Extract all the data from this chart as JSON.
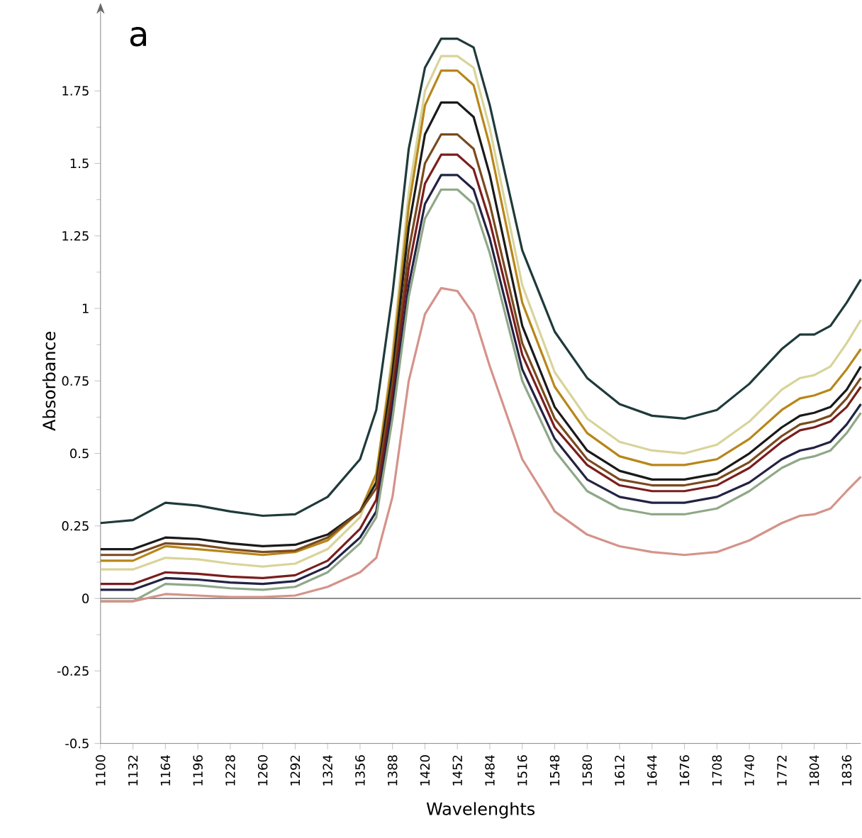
{
  "chart_data": {
    "type": "line",
    "title": "a",
    "xlabel": "Wavelenghts",
    "ylabel": "Absorbance",
    "x": [
      1100,
      1132,
      1164,
      1196,
      1228,
      1260,
      1292,
      1324,
      1356,
      1372,
      1388,
      1404,
      1420,
      1436,
      1452,
      1468,
      1484,
      1516,
      1548,
      1580,
      1612,
      1644,
      1676,
      1708,
      1740,
      1772,
      1790,
      1804,
      1820,
      1836,
      1850
    ],
    "series": [
      {
        "color": "#1f3a3a",
        "values": [
          0.26,
          0.27,
          0.33,
          0.32,
          0.3,
          0.285,
          0.29,
          0.35,
          0.48,
          0.65,
          1.05,
          1.55,
          1.83,
          1.93,
          1.93,
          1.9,
          1.7,
          1.2,
          0.92,
          0.76,
          0.67,
          0.63,
          0.62,
          0.65,
          0.74,
          0.86,
          0.91,
          0.91,
          0.94,
          1.02,
          1.1
        ]
      },
      {
        "color": "#d8d49a",
        "values": [
          0.1,
          0.1,
          0.14,
          0.135,
          0.12,
          0.11,
          0.12,
          0.17,
          0.28,
          0.42,
          0.85,
          1.4,
          1.75,
          1.87,
          1.87,
          1.83,
          1.62,
          1.08,
          0.78,
          0.62,
          0.54,
          0.51,
          0.5,
          0.53,
          0.61,
          0.72,
          0.76,
          0.77,
          0.8,
          0.88,
          0.96
        ]
      },
      {
        "color": "#b8861a",
        "values": [
          0.13,
          0.13,
          0.18,
          0.17,
          0.16,
          0.15,
          0.16,
          0.2,
          0.3,
          0.43,
          0.82,
          1.35,
          1.7,
          1.82,
          1.82,
          1.77,
          1.56,
          1.02,
          0.73,
          0.57,
          0.49,
          0.46,
          0.46,
          0.48,
          0.55,
          0.65,
          0.69,
          0.7,
          0.72,
          0.79,
          0.86
        ]
      },
      {
        "color": "#1a1a1a",
        "values": [
          0.17,
          0.17,
          0.21,
          0.205,
          0.19,
          0.18,
          0.185,
          0.22,
          0.3,
          0.4,
          0.78,
          1.28,
          1.6,
          1.71,
          1.71,
          1.66,
          1.46,
          0.94,
          0.66,
          0.51,
          0.44,
          0.41,
          0.41,
          0.43,
          0.5,
          0.59,
          0.63,
          0.64,
          0.66,
          0.72,
          0.8
        ]
      },
      {
        "color": "#7a4a1e",
        "values": [
          0.15,
          0.15,
          0.19,
          0.185,
          0.17,
          0.16,
          0.165,
          0.21,
          0.3,
          0.38,
          0.74,
          1.2,
          1.5,
          1.6,
          1.6,
          1.55,
          1.36,
          0.88,
          0.62,
          0.48,
          0.41,
          0.39,
          0.39,
          0.41,
          0.47,
          0.56,
          0.6,
          0.61,
          0.63,
          0.69,
          0.76
        ]
      },
      {
        "color": "#7a1e1e",
        "values": [
          0.05,
          0.05,
          0.09,
          0.085,
          0.075,
          0.07,
          0.08,
          0.13,
          0.24,
          0.34,
          0.7,
          1.14,
          1.43,
          1.53,
          1.53,
          1.48,
          1.3,
          0.84,
          0.59,
          0.46,
          0.39,
          0.37,
          0.37,
          0.39,
          0.45,
          0.54,
          0.58,
          0.59,
          0.61,
          0.66,
          0.73
        ]
      },
      {
        "color": "#222244",
        "values": [
          0.03,
          0.03,
          0.07,
          0.065,
          0.055,
          0.05,
          0.06,
          0.11,
          0.21,
          0.3,
          0.66,
          1.08,
          1.36,
          1.46,
          1.46,
          1.41,
          1.24,
          0.79,
          0.55,
          0.41,
          0.35,
          0.33,
          0.33,
          0.35,
          0.4,
          0.48,
          0.51,
          0.52,
          0.54,
          0.6,
          0.67
        ]
      },
      {
        "color": "#8fa888",
        "values": [
          -0.01,
          -0.01,
          0.05,
          0.045,
          0.035,
          0.03,
          0.04,
          0.09,
          0.19,
          0.28,
          0.62,
          1.04,
          1.31,
          1.41,
          1.41,
          1.36,
          1.19,
          0.75,
          0.51,
          0.37,
          0.31,
          0.29,
          0.29,
          0.31,
          0.37,
          0.45,
          0.48,
          0.49,
          0.51,
          0.57,
          0.64
        ]
      },
      {
        "color": "#d4938a",
        "values": [
          -0.01,
          -0.01,
          0.015,
          0.01,
          0.005,
          0.005,
          0.01,
          0.04,
          0.09,
          0.14,
          0.35,
          0.75,
          0.98,
          1.07,
          1.06,
          0.98,
          0.8,
          0.48,
          0.3,
          0.22,
          0.18,
          0.16,
          0.15,
          0.16,
          0.2,
          0.26,
          0.285,
          0.29,
          0.31,
          0.37,
          0.42
        ]
      }
    ],
    "xlim": [
      1100,
      1850
    ],
    "ylim": [
      -0.5,
      2.0
    ],
    "xticks": [
      1100,
      1132,
      1164,
      1196,
      1228,
      1260,
      1292,
      1324,
      1356,
      1388,
      1420,
      1452,
      1484,
      1516,
      1548,
      1580,
      1612,
      1644,
      1676,
      1708,
      1740,
      1772,
      1804,
      1836
    ],
    "yticks": [
      -0.5,
      -0.25,
      0,
      0.25,
      0.5,
      0.75,
      1,
      1.25,
      1.5,
      1.75
    ],
    "ref_lines": [
      {
        "axis": "y",
        "value": 0,
        "color": "#808080"
      }
    ],
    "legend": false,
    "grid": false,
    "line_style": "solid"
  }
}
